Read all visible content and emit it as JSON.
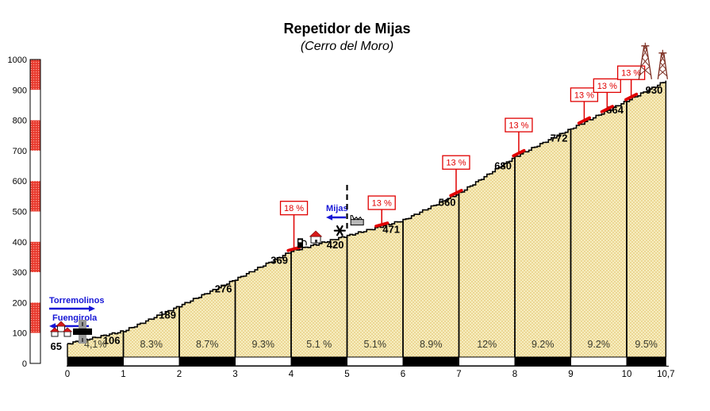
{
  "header": {
    "title": "Repetidor de Mijas",
    "subtitle": "(Cerro del Moro)"
  },
  "colors": {
    "flag_red": "#e00000",
    "axis_bar_red": "#e93a2e",
    "axis_bar_red_dot": "#f7a79e",
    "town_blue": "#1616d6",
    "profile_fill_light": "#f6edbf",
    "profile_fill_dark": "#ecd795",
    "profile_line": "#000000",
    "antenna_maroon": "#7c2e22",
    "factory_gray": "#b8b8b8",
    "road_gray": "#999999",
    "gradient_text": "#3a3a2c"
  },
  "y_axis": {
    "ticks": [
      "1000",
      "900",
      "800",
      "700",
      "600",
      "500",
      "400",
      "300",
      "200",
      "100",
      "0"
    ],
    "min": 0,
    "max": 1000
  },
  "x_axis": {
    "ticks": [
      "0",
      "1",
      "2",
      "3",
      "4",
      "5",
      "6",
      "7",
      "8",
      "9",
      "10",
      "10,7"
    ],
    "tick_km": [
      0,
      1,
      2,
      3,
      4,
      5,
      6,
      7,
      8,
      9,
      10,
      10.7
    ],
    "unit": "km"
  },
  "chart_data": {
    "type": "area",
    "title": "Repetidor de Mijas",
    "subtitle": "(Cerro del Moro)",
    "x": [
      0,
      1,
      2,
      3,
      4,
      5,
      6,
      7,
      8,
      9,
      10,
      10.7
    ],
    "elevations": [
      65,
      106,
      189,
      276,
      369,
      420,
      471,
      560,
      680,
      772,
      864,
      930
    ],
    "elevation_labels": [
      "65",
      "106",
      "189",
      "276",
      "369",
      "420",
      "471",
      "560",
      "680",
      "772",
      "864",
      "930"
    ],
    "segment_gradients": [
      "4,1%",
      "8.3%",
      "8.7%",
      "9.3%",
      "5.1 %",
      "5.1%",
      "8.9%",
      "12%",
      "9.2%",
      "9.2%",
      "9.5%"
    ],
    "ylim": [
      0,
      1000
    ],
    "xlim": [
      0,
      10.7
    ],
    "grid": false,
    "legend": false
  },
  "flags": [
    {
      "label": "18 %",
      "km": 4.05,
      "drop": 43
    },
    {
      "label": "13 %",
      "km": 5.62,
      "drop": 19
    },
    {
      "label": "13 %",
      "km": 6.95,
      "drop": 30
    },
    {
      "label": "13 %",
      "km": 8.07,
      "drop": 27
    },
    {
      "label": "13 %",
      "km": 9.24,
      "drop": 24
    },
    {
      "label": "13 %",
      "km": 9.65,
      "drop": 21
    },
    {
      "label": "13 %",
      "km": 10.08,
      "drop": 22
    }
  ],
  "towns": [
    {
      "name": "Torremolinos",
      "arrow": "right"
    },
    {
      "name": "Fuengirola",
      "arrow": "left"
    },
    {
      "name": "Mijas",
      "arrow": "left"
    }
  ],
  "landmarks": [
    {
      "icon": "village-icon",
      "km": -0.11
    },
    {
      "icon": "road-crossing-icon",
      "km": 0.27
    },
    {
      "icon": "gas-pump-icon",
      "km": 4.17
    },
    {
      "icon": "house-icon",
      "km": 4.44
    },
    {
      "icon": "star-icon",
      "km": 4.87
    },
    {
      "icon": "town-boundary-dashed-line",
      "km": 5.0
    },
    {
      "icon": "factory-icon",
      "km": 5.18
    },
    {
      "icon": "antenna-tower-icon",
      "km": 10.33
    },
    {
      "icon": "antenna-tower-icon-small",
      "km": 10.63
    }
  ]
}
